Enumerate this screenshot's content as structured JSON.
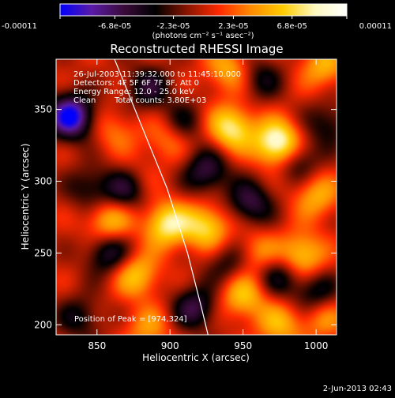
{
  "chart_data": {
    "type": "heatmap",
    "title": "Reconstructed RHESSI Image",
    "xlabel": "Heliocentric X (arcsec)",
    "ylabel": "Heliocentric Y (arcsec)",
    "xlim": [
      822,
      1014
    ],
    "ylim": [
      193,
      385
    ],
    "x_ticks": [
      850,
      900,
      950,
      1000
    ],
    "y_ticks": [
      200,
      250,
      300,
      350
    ],
    "grid": false,
    "colorbar": {
      "range": [
        -0.00011,
        0.00011
      ],
      "tick_values": [
        -0.00011,
        -6.8e-05,
        -2.3e-05,
        2.3e-05,
        6.8e-05,
        0.00011
      ],
      "tick_labels": [
        "-0.00011",
        "-6.8e-05",
        "-2.3e-05",
        "2.3e-05",
        "6.8e-05",
        "0.00011"
      ],
      "unit_label": "(photons cm⁻² s⁻¹ asec⁻²)",
      "colors": [
        "#0000ff",
        "#5a1aa5",
        "#3a0b3a",
        "#000000",
        "#8a1500",
        "#ff2a00",
        "#ff8c00",
        "#ffcc00",
        "#fff9c0",
        "#ffffff"
      ]
    },
    "info": {
      "time_range": "26-Jul-2003 11:39:32.000 to 11:45:10.000",
      "detectors": "Detectors: 4F 5F 6F 7F 8F, Att 0",
      "energy_range": "Energy Range: 12.0 - 25.0 keV",
      "method": "Clean",
      "total_counts": "Total counts: 3.80E+03"
    },
    "peak_label": "Position of Peak = [974,324]",
    "peak_position": [
      974,
      324
    ],
    "limb_curve": [
      [
        862,
        385
      ],
      [
        880,
        340
      ],
      [
        898,
        295
      ],
      [
        912,
        250
      ],
      [
        922,
        210
      ],
      [
        926,
        193
      ]
    ],
    "hot_spots": [
      {
        "x": 974,
        "y": 326,
        "value": 0.00011
      },
      {
        "x": 942,
        "y": 337,
        "value": 8e-05
      },
      {
        "x": 898,
        "y": 270,
        "value": 8e-05
      },
      {
        "x": 925,
        "y": 268,
        "value": 7e-05
      },
      {
        "x": 858,
        "y": 272,
        "value": 6e-05
      },
      {
        "x": 990,
        "y": 248,
        "value": 7e-05
      },
      {
        "x": 950,
        "y": 220,
        "value": 6e-05
      },
      {
        "x": 975,
        "y": 200,
        "value": 5e-05
      },
      {
        "x": 877,
        "y": 235,
        "value": 6e-05
      },
      {
        "x": 885,
        "y": 197,
        "value": 4e-05
      },
      {
        "x": 1005,
        "y": 380,
        "value": 5e-05
      },
      {
        "x": 1000,
        "y": 290,
        "value": 5e-05
      },
      {
        "x": 940,
        "y": 378,
        "value": 5e-05
      },
      {
        "x": 898,
        "y": 330,
        "value": 4e-05
      },
      {
        "x": 875,
        "y": 300,
        "value": 3e-05
      },
      {
        "x": 960,
        "y": 250,
        "value": 4e-05
      },
      {
        "x": 1005,
        "y": 205,
        "value": 4e-05
      },
      {
        "x": 862,
        "y": 335,
        "value": 3e-05
      }
    ],
    "cold_spots": [
      {
        "x": 832,
        "y": 345,
        "value": -0.00011
      },
      {
        "x": 870,
        "y": 295,
        "value": -7e-05
      },
      {
        "x": 858,
        "y": 250,
        "value": -6e-05
      },
      {
        "x": 917,
        "y": 212,
        "value": -6e-05
      },
      {
        "x": 925,
        "y": 307,
        "value": -6e-05
      },
      {
        "x": 987,
        "y": 315,
        "value": -5e-05
      },
      {
        "x": 955,
        "y": 285,
        "value": -6e-05
      },
      {
        "x": 962,
        "y": 372,
        "value": -4e-05
      },
      {
        "x": 885,
        "y": 365,
        "value": -5e-05
      },
      {
        "x": 975,
        "y": 235,
        "value": -5e-05
      },
      {
        "x": 940,
        "y": 243,
        "value": -4e-05
      },
      {
        "x": 908,
        "y": 340,
        "value": -4e-05
      },
      {
        "x": 1008,
        "y": 340,
        "value": -4e-05
      },
      {
        "x": 838,
        "y": 205,
        "value": -4e-05
      },
      {
        "x": 1000,
        "y": 222,
        "value": -5e-05
      },
      {
        "x": 845,
        "y": 295,
        "value": -4e-05
      }
    ]
  },
  "footer": {
    "date_label": "2-Jun-2013 02:43"
  }
}
